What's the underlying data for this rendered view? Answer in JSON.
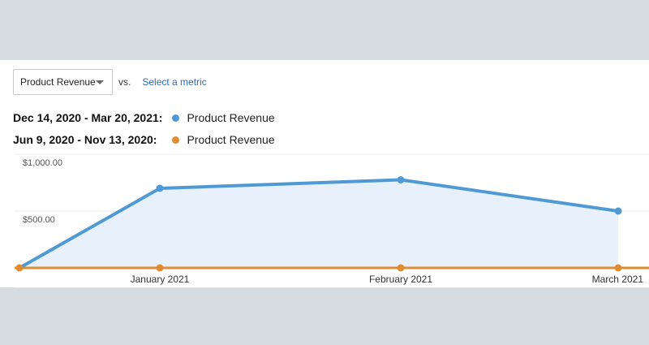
{
  "toolbar": {
    "metric_select": "Product Revenue",
    "vs_label": "vs.",
    "select_metric_link": "Select a metric"
  },
  "legend": [
    {
      "range": "Dec 14, 2020 - Mar 20, 2021:",
      "name": "Product Revenue",
      "color": "#4f9ad4"
    },
    {
      "range": "Jun 9, 2020 - Nov 13, 2020:",
      "name": "Product Revenue",
      "color": "#e08b2f"
    }
  ],
  "chart_data": {
    "type": "line",
    "categories": [
      "",
      "January 2021",
      "February 2021",
      "March 2021"
    ],
    "y_tick_labels": [
      "$1,000.00",
      "$500.00"
    ],
    "y_ticks": [
      1000,
      500
    ],
    "ylim": [
      0,
      1000
    ],
    "grid": true,
    "series": [
      {
        "name": "Product Revenue",
        "period": "Dec 14, 2020 - Mar 20, 2021",
        "color": "#4f9ad4",
        "values": [
          0,
          700,
          775,
          500
        ],
        "fill": true
      },
      {
        "name": "Product Revenue",
        "period": "Jun 9, 2020 - Nov 13, 2020",
        "color": "#e08b2f",
        "values": [
          0,
          0,
          0,
          0
        ],
        "fill": false
      }
    ]
  }
}
